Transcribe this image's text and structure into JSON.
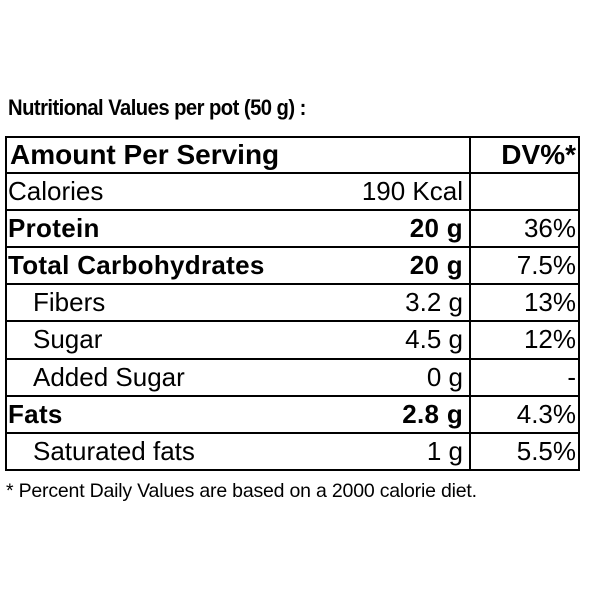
{
  "title": "Nutritional Values per pot (50 g) :",
  "table": {
    "header": {
      "name": "Amount Per Serving",
      "dv": "DV%*"
    },
    "rows": [
      {
        "name": "Calories",
        "amount": "190 Kcal"
      },
      {
        "name": "Protein",
        "amount": "20 g",
        "dv": "36%",
        "bold": true
      },
      {
        "name": "Total Carbohydrates",
        "amount": "20 g",
        "dv": "7.5%",
        "bold": true
      },
      {
        "name": "Fibers",
        "amount": "3.2 g",
        "dv": "13%",
        "indent": true
      },
      {
        "name": "Sugar",
        "amount": "4.5 g",
        "dv": "12%",
        "indent": true
      },
      {
        "name": "Added Sugar",
        "amount": "0 g",
        "dv": "-",
        "indent": true
      },
      {
        "name": "Fats",
        "amount": "2.8 g",
        "dv": "4.3%",
        "bold": true
      },
      {
        "name": "Saturated fats",
        "amount": "1 g",
        "dv": "5.5%",
        "indent": true
      }
    ]
  },
  "footnote": "* Percent Daily Values are based on a 2000 calorie diet."
}
